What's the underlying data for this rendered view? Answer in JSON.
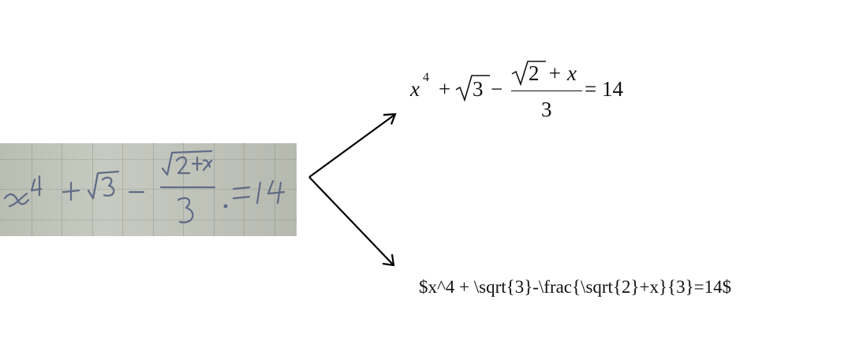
{
  "handwritten_photo": {
    "strokes_label": "x^4 + √3 − (√2 + x)/3 = 14"
  },
  "rendered_formula": {
    "x": "x",
    "exp": "4",
    "plus1": "+",
    "sqrt3_radicand": "3",
    "minus": "−",
    "numerator_radicand": "2",
    "numerator_rest": "+ x",
    "denominator": "3",
    "equals": "= 14"
  },
  "latex_source": "$x^4 + \\sqrt{3}-\\frac{\\sqrt{2}+x}{3}=14$",
  "colors": {
    "photo_ink": "#5f6b86",
    "paper": "#c3c6bc",
    "arrow": "#000000"
  },
  "icons": [
    "arrow-up-right-icon",
    "arrow-down-right-icon"
  ]
}
